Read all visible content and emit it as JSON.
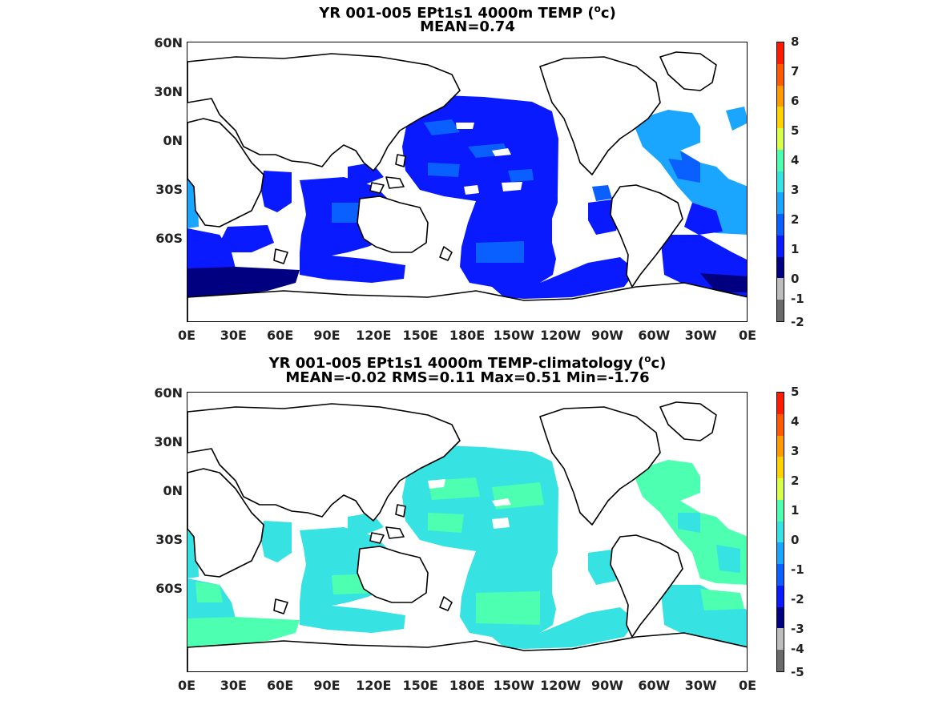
{
  "panel1": {
    "title_line1": "YR 001-005 EPt1s1 4000m TEMP (",
    "unit_sup": "o",
    "unit_tail": "c)",
    "title_line2": "MEAN=0.74",
    "colorbar_labels": [
      "8",
      "7",
      "6",
      "5",
      "4",
      "3",
      "2",
      "1",
      "0",
      "-1",
      "-2"
    ],
    "colorbar_colors": [
      "#ff1a00",
      "#ff5a00",
      "#ff9a00",
      "#ffd400",
      "#d8ff4a",
      "#4dffb0",
      "#36e2e2",
      "#1aa6ff",
      "#0a60ff",
      "#0a1aff",
      "#000080",
      "#bdbdbd",
      "#6b6b6b"
    ]
  },
  "panel2": {
    "title_line1": "YR 001-005 EPt1s1 4000m TEMP-climatology (",
    "unit_sup": "o",
    "unit_tail": "c)",
    "title_line2": "MEAN=-0.02   RMS=0.11   Max=0.51   Min=-1.76",
    "colorbar_labels": [
      "5",
      "4",
      "3",
      "2",
      "1",
      "0",
      "-1",
      "-2",
      "-3",
      "-4",
      "-5"
    ],
    "colorbar_colors": [
      "#ff1a00",
      "#ff5a00",
      "#ff9a00",
      "#ffd400",
      "#d8ff4a",
      "#4dffb0",
      "#36e2e2",
      "#1aa6ff",
      "#0a60ff",
      "#0a1aff",
      "#000080",
      "#bdbdbd",
      "#6b6b6b"
    ]
  },
  "axes": {
    "lat_labels": [
      "60N",
      "30N",
      "0N",
      "30S",
      "60S"
    ],
    "lon_labels": [
      "0E",
      "30E",
      "60E",
      "90E",
      "120E",
      "150E",
      "180E",
      "150W",
      "120W",
      "90W",
      "60W",
      "30W",
      "0E"
    ]
  },
  "colors": {
    "deep_blue": "#0a1aff",
    "mid_blue": "#0a60ff",
    "light_blue": "#1aa6ff",
    "navy": "#000080",
    "cyan": "#36e2e2",
    "aqua": "#4dffb0"
  }
}
